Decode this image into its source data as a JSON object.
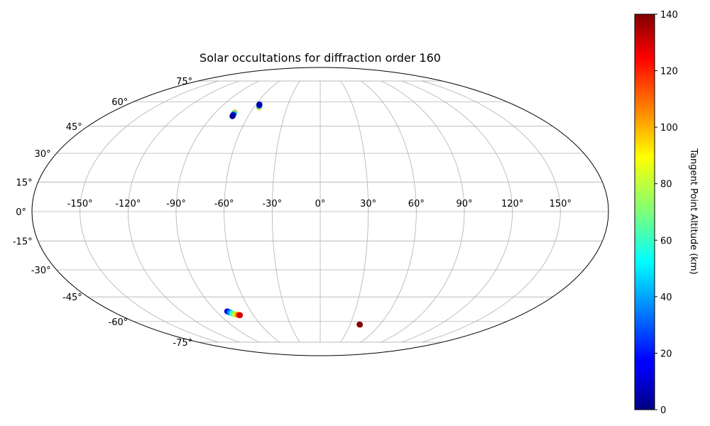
{
  "chart_data": {
    "type": "scatter",
    "title": "Solar occultations for diffraction order 160",
    "projection": "mollweide",
    "grid": true,
    "lon_ticks": [
      -150,
      -120,
      -90,
      -60,
      -30,
      0,
      30,
      60,
      90,
      120,
      150
    ],
    "lon_tick_labels": [
      "-150°",
      "-120°",
      "-90°",
      "-60°",
      "-30°",
      "0°",
      "30°",
      "60°",
      "90°",
      "120°",
      "150°"
    ],
    "lat_ticks": [
      75,
      60,
      45,
      30,
      15,
      0,
      -15,
      -30,
      -45,
      -60,
      -75
    ],
    "lat_tick_labels": [
      "75°",
      "60°",
      "45°",
      "30°",
      "15°",
      "0°",
      "-15°",
      "-30°",
      "-45°",
      "-60°",
      "-75°"
    ],
    "colorbar": {
      "label": "Tangent Point Altitude (km)",
      "colormap": "jet",
      "range": [
        0,
        140
      ],
      "ticks": [
        0,
        20,
        40,
        60,
        80,
        100,
        120,
        140
      ],
      "tick_labels": [
        "0",
        "20",
        "40",
        "60",
        "80",
        "100",
        "120",
        "140"
      ],
      "placement": "right"
    },
    "points": [
      {
        "lon": -73.5,
        "lat": 53.2,
        "alt": 100
      },
      {
        "lon": -73.4,
        "lat": 52.6,
        "alt": 60
      },
      {
        "lon": -73.3,
        "lat": 52.0,
        "alt": 30
      },
      {
        "lon": -73.2,
        "lat": 51.4,
        "alt": 10
      },
      {
        "lon": -73.1,
        "lat": 50.9,
        "alt": 3
      },
      {
        "lon": -55.5,
        "lat": 56.5,
        "alt": 100
      },
      {
        "lon": -55.8,
        "lat": 57.0,
        "alt": 70
      },
      {
        "lon": -56.1,
        "lat": 57.4,
        "alt": 40
      },
      {
        "lon": -56.4,
        "lat": 57.8,
        "alt": 15
      },
      {
        "lon": -56.7,
        "lat": 58.2,
        "alt": 5
      },
      {
        "lon": -80.5,
        "lat": -53.6,
        "alt": 10
      },
      {
        "lon": -79.8,
        "lat": -53.9,
        "alt": 20
      },
      {
        "lon": -79.1,
        "lat": -54.2,
        "alt": 30
      },
      {
        "lon": -78.4,
        "lat": -54.5,
        "alt": 40
      },
      {
        "lon": -77.7,
        "lat": -54.8,
        "alt": 50
      },
      {
        "lon": -77.0,
        "lat": -55.0,
        "alt": 60
      },
      {
        "lon": -76.3,
        "lat": -55.2,
        "alt": 70
      },
      {
        "lon": -75.6,
        "lat": -55.4,
        "alt": 80
      },
      {
        "lon": -74.9,
        "lat": -55.6,
        "alt": 90
      },
      {
        "lon": -74.2,
        "lat": -55.7,
        "alt": 100
      },
      {
        "lon": -73.5,
        "lat": -55.8,
        "alt": 110
      },
      {
        "lon": -72.8,
        "lat": -55.9,
        "alt": 120
      },
      {
        "lon": -72.1,
        "lat": -56.0,
        "alt": 130
      },
      {
        "lon": 39.5,
        "lat": -62.0,
        "alt": 138
      },
      {
        "lon": 40.0,
        "lat": -62.1,
        "alt": 140
      }
    ]
  }
}
